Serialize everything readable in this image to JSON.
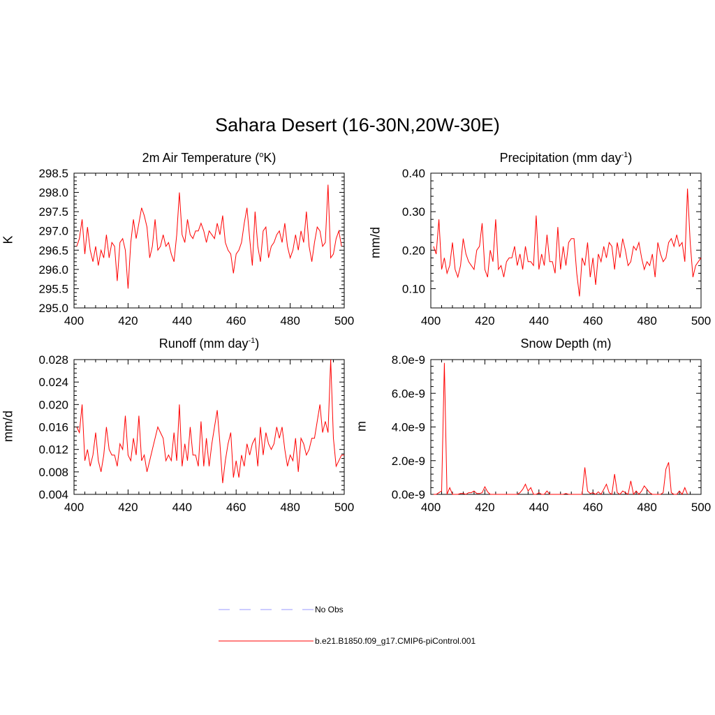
{
  "figure_title": "Sahara Desert (16-30N,20W-30E)",
  "colors": {
    "model": "#ff0000",
    "obs": "#9999ff",
    "axis": "#000000"
  },
  "legend": {
    "obs_label": "No Obs",
    "model_label": "b.e21.B1850.f09_g17.CMIP6-piControl.001"
  },
  "chart_data": [
    {
      "type": "line",
      "title_main": "2m Air Temperature (",
      "title_sup": "o",
      "title_tail": "K)",
      "ylabel": "K",
      "xlim": [
        400,
        500
      ],
      "ylim": [
        295.0,
        298.5
      ],
      "xticks": [
        400,
        420,
        440,
        460,
        480,
        500
      ],
      "xtick_labels": [
        "400",
        "420",
        "440",
        "460",
        "480",
        "500"
      ],
      "yticks": [
        295.0,
        295.5,
        296.0,
        296.5,
        297.0,
        297.5,
        298.0,
        298.5
      ],
      "ytick_labels": [
        "295.0",
        "295.5",
        "296.0",
        "296.5",
        "297.0",
        "297.5",
        "298.0",
        "298.5"
      ],
      "x_start": 401,
      "series": [
        {
          "name": "b.e21.B1850.f09_g17.CMIP6-piControl.001",
          "values": [
            296.6,
            296.8,
            297.3,
            296.4,
            297.1,
            296.5,
            296.2,
            296.6,
            296.1,
            296.5,
            296.3,
            296.9,
            296.3,
            296.7,
            296.6,
            295.7,
            296.7,
            296.8,
            296.5,
            295.5,
            296.7,
            297.3,
            296.8,
            297.2,
            297.6,
            297.4,
            297.1,
            296.3,
            296.6,
            297.3,
            296.5,
            296.6,
            296.9,
            296.6,
            296.7,
            296.4,
            296.2,
            296.9,
            298.0,
            296.9,
            296.7,
            297.3,
            296.9,
            296.8,
            297.0,
            297.0,
            297.2,
            297.0,
            296.7,
            297.0,
            296.9,
            296.8,
            297.2,
            296.9,
            297.4,
            296.7,
            296.5,
            296.4,
            295.9,
            296.4,
            296.5,
            296.7,
            297.2,
            297.6,
            296.8,
            296.1,
            297.5,
            296.6,
            296.2,
            297.0,
            297.1,
            296.3,
            296.6,
            296.7,
            296.9,
            297.0,
            296.7,
            297.2,
            296.6,
            296.3,
            296.5,
            296.9,
            296.5,
            297.0,
            296.7,
            297.5,
            296.6,
            296.2,
            296.7,
            297.1,
            297.0,
            296.6,
            296.7,
            298.2,
            296.3,
            296.4,
            296.8,
            297.0,
            296.6
          ]
        }
      ]
    },
    {
      "type": "line",
      "title_main": "Precipitation (mm day",
      "title_sup": "-1",
      "title_tail": ")",
      "ylabel": "mm/d",
      "xlim": [
        400,
        500
      ],
      "ylim": [
        0.05,
        0.4
      ],
      "xticks": [
        400,
        420,
        440,
        460,
        480,
        500
      ],
      "xtick_labels": [
        "400",
        "420",
        "440",
        "460",
        "480",
        "500"
      ],
      "yticks": [
        0.1,
        0.2,
        0.3,
        0.4
      ],
      "ytick_labels": [
        "0.10",
        "0.20",
        "0.30",
        "0.40"
      ],
      "x_start": 401,
      "series": [
        {
          "name": "b.e21.B1850.f09_g17.CMIP6-piControl.001",
          "values": [
            0.21,
            0.19,
            0.28,
            0.15,
            0.18,
            0.14,
            0.16,
            0.22,
            0.15,
            0.13,
            0.16,
            0.23,
            0.19,
            0.17,
            0.16,
            0.15,
            0.2,
            0.21,
            0.27,
            0.15,
            0.13,
            0.2,
            0.17,
            0.28,
            0.15,
            0.16,
            0.13,
            0.17,
            0.18,
            0.18,
            0.21,
            0.16,
            0.19,
            0.15,
            0.21,
            0.17,
            0.17,
            0.16,
            0.29,
            0.15,
            0.19,
            0.16,
            0.24,
            0.17,
            0.17,
            0.14,
            0.26,
            0.15,
            0.21,
            0.16,
            0.22,
            0.23,
            0.23,
            0.14,
            0.08,
            0.18,
            0.16,
            0.22,
            0.13,
            0.18,
            0.11,
            0.19,
            0.17,
            0.21,
            0.18,
            0.22,
            0.21,
            0.15,
            0.22,
            0.18,
            0.23,
            0.2,
            0.16,
            0.17,
            0.21,
            0.2,
            0.22,
            0.18,
            0.15,
            0.17,
            0.16,
            0.19,
            0.13,
            0.22,
            0.19,
            0.17,
            0.18,
            0.22,
            0.23,
            0.21,
            0.24,
            0.21,
            0.22,
            0.17,
            0.36,
            0.22,
            0.13,
            0.16,
            0.17,
            0.18
          ]
        }
      ]
    },
    {
      "type": "line",
      "title_main": "Runoff (mm day",
      "title_sup": "-1",
      "title_tail": ")",
      "ylabel": "mm/d",
      "xlim": [
        400,
        500
      ],
      "ylim": [
        0.004,
        0.028
      ],
      "xticks": [
        400,
        420,
        440,
        460,
        480,
        500
      ],
      "xtick_labels": [
        "400",
        "420",
        "440",
        "460",
        "480",
        "500"
      ],
      "yticks": [
        0.004,
        0.008,
        0.012,
        0.016,
        0.02,
        0.024,
        0.028
      ],
      "ytick_labels": [
        "0.004",
        "0.008",
        "0.012",
        "0.016",
        "0.020",
        "0.024",
        "0.028"
      ],
      "x_start": 401,
      "series": [
        {
          "name": "b.e21.B1850.f09_g17.CMIP6-piControl.001",
          "values": [
            0.016,
            0.015,
            0.02,
            0.01,
            0.012,
            0.009,
            0.011,
            0.015,
            0.01,
            0.008,
            0.011,
            0.016,
            0.012,
            0.011,
            0.011,
            0.009,
            0.013,
            0.012,
            0.018,
            0.011,
            0.01,
            0.014,
            0.011,
            0.018,
            0.01,
            0.011,
            0.008,
            0.01,
            0.012,
            0.014,
            0.016,
            0.015,
            0.014,
            0.01,
            0.011,
            0.01,
            0.015,
            0.01,
            0.02,
            0.009,
            0.013,
            0.01,
            0.016,
            0.011,
            0.011,
            0.009,
            0.017,
            0.009,
            0.014,
            0.009,
            0.013,
            0.016,
            0.019,
            0.013,
            0.006,
            0.01,
            0.013,
            0.015,
            0.007,
            0.01,
            0.007,
            0.011,
            0.009,
            0.013,
            0.011,
            0.013,
            0.014,
            0.009,
            0.016,
            0.011,
            0.015,
            0.013,
            0.012,
            0.013,
            0.016,
            0.014,
            0.016,
            0.012,
            0.009,
            0.011,
            0.01,
            0.014,
            0.008,
            0.014,
            0.013,
            0.011,
            0.012,
            0.014,
            0.014,
            0.017,
            0.02,
            0.015,
            0.017,
            0.015,
            0.028,
            0.014,
            0.009,
            0.01,
            0.011,
            0.011
          ]
        }
      ]
    },
    {
      "type": "line",
      "title_main": "Snow Depth (m)",
      "title_sup": "",
      "title_tail": "",
      "ylabel": "m",
      "xlim": [
        400,
        500
      ],
      "ylim": [
        0,
        8e-09
      ],
      "xticks": [
        400,
        420,
        440,
        460,
        480,
        500
      ],
      "xtick_labels": [
        "400",
        "420",
        "440",
        "460",
        "480",
        "500"
      ],
      "yticks": [
        0,
        2e-09,
        4e-09,
        6e-09,
        8e-09
      ],
      "ytick_labels": [
        "0.0e-9",
        "2.0e-9",
        "4.0e-9",
        "6.0e-9",
        "8.0e-9"
      ],
      "x_start": 401,
      "series": [
        {
          "name": "b.e21.B1850.f09_g17.CMIP6-piControl.001",
          "values": [
            0,
            0,
            1e-10,
            2e-10,
            7.8e-09,
            0,
            4e-10,
            0,
            0,
            0,
            5e-11,
            5e-11,
            0,
            1e-10,
            1e-10,
            2e-10,
            5e-11,
            5e-11,
            1e-10,
            4.5e-10,
            1.5e-10,
            0,
            0,
            0,
            0,
            0,
            0,
            0,
            0,
            0,
            0,
            0,
            1e-10,
            3e-10,
            6e-10,
            2e-10,
            4e-10,
            0,
            0,
            1e-10,
            0,
            0,
            2e-10,
            0,
            0,
            0,
            0,
            0,
            0,
            5e-11,
            0,
            0,
            0,
            0,
            0,
            0,
            1.6e-09,
            2e-10,
            5e-11,
            1e-10,
            0,
            1.5e-10,
            0,
            3e-10,
            6e-10,
            1e-10,
            0,
            1.2e-09,
            1e-10,
            0,
            2e-10,
            1e-10,
            0,
            8e-10,
            0,
            2e-10,
            0,
            2e-10,
            5e-10,
            3e-10,
            1e-10,
            0,
            0,
            0,
            0,
            1e-10,
            1.5e-09,
            1.9e-09,
            1e-10,
            0,
            0,
            2e-10,
            0,
            4e-10,
            0
          ]
        }
      ]
    }
  ]
}
